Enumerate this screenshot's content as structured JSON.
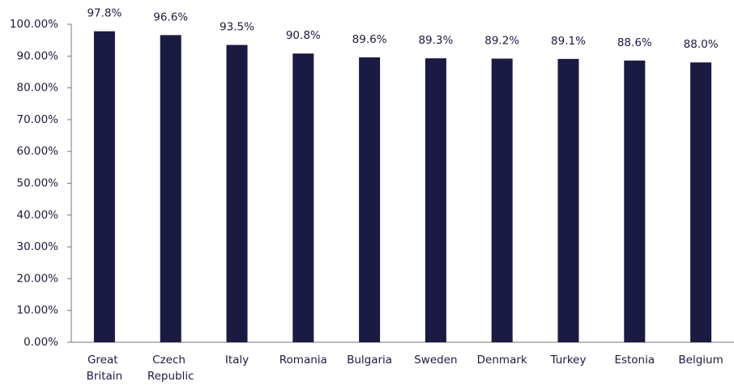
{
  "chart_data": {
    "type": "bar",
    "categories": [
      "Great Britain",
      "Czech Republic",
      "Italy",
      "Romania",
      "Bulgaria",
      "Sweden",
      "Denmark",
      "Turkey",
      "Estonia",
      "Belgium"
    ],
    "values": [
      97.8,
      96.6,
      93.5,
      90.8,
      89.6,
      89.3,
      89.2,
      89.1,
      88.6,
      88.0
    ],
    "value_labels": [
      "97.8%",
      "96.6%",
      "93.5%",
      "90.8%",
      "89.6%",
      "89.3%",
      "89.2%",
      "89.1%",
      "88.6%",
      "88.0%"
    ],
    "color": "#1b1a42",
    "ylim": [
      0,
      100
    ],
    "yticks": [
      {
        "value": 0,
        "label": "0.00%"
      },
      {
        "value": 10,
        "label": "10.00%"
      },
      {
        "value": 20,
        "label": "20.00%"
      },
      {
        "value": 30,
        "label": "30.00%"
      },
      {
        "value": 40,
        "label": "40.00%"
      },
      {
        "value": 50,
        "label": "50.00%"
      },
      {
        "value": 60,
        "label": "60.00%"
      },
      {
        "value": 70,
        "label": "70.00%"
      },
      {
        "value": 80,
        "label": "80.00%"
      },
      {
        "value": 90,
        "label": "90.00%"
      },
      {
        "value": 100,
        "label": "100.00%"
      }
    ],
    "grid": false
  }
}
